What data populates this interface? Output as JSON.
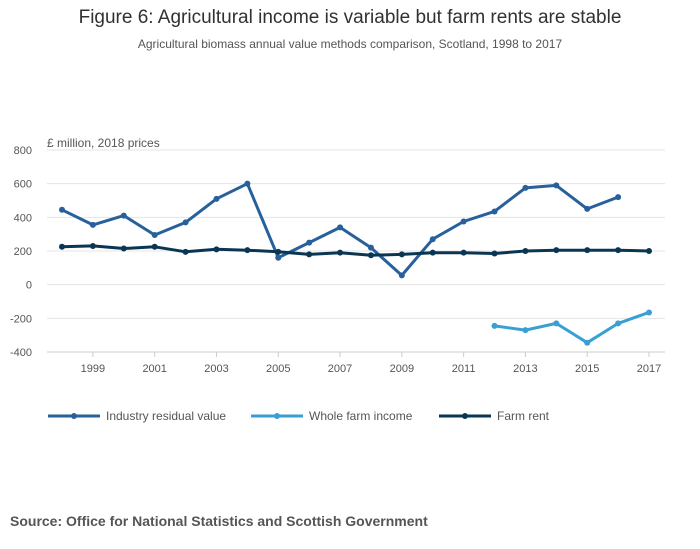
{
  "header": {
    "title": "Figure 6: Agricultural income is variable but farm rents are stable",
    "subtitle": "Agricultural biomass annual value methods comparison, Scotland, 1998 to 2017"
  },
  "footer": {
    "source": "Source: Office for National Statistics and Scottish Government"
  },
  "colors": {
    "industry_residual_value": "#27609b",
    "whole_farm_income": "#3aa0d4",
    "farm_rent": "#0b3653",
    "grid": "#e5e5e5",
    "text": "#555555"
  },
  "chart_data": {
    "type": "line",
    "title": "Figure 6: Agricultural income is variable but farm rents are stable",
    "subtitle": "Agricultural biomass annual value methods comparison, Scotland, 1998 to 2017",
    "xlabel": "",
    "ylabel": "£ million, 2018 prices",
    "x": [
      1998,
      1999,
      2000,
      2001,
      2002,
      2003,
      2004,
      2005,
      2006,
      2007,
      2008,
      2009,
      2010,
      2011,
      2012,
      2013,
      2014,
      2015,
      2016,
      2017
    ],
    "x_ticks": [
      "1999",
      "2001",
      "2003",
      "2005",
      "2007",
      "2009",
      "2011",
      "2013",
      "2015",
      "2017"
    ],
    "y_ticks": [
      "800",
      "600",
      "400",
      "200",
      "0",
      "-200",
      "-400"
    ],
    "ylim": [
      -400,
      800
    ],
    "grid": true,
    "legend_position": "bottom",
    "series": [
      {
        "name": "Industry residual value",
        "values": [
          445,
          355,
          410,
          295,
          370,
          510,
          600,
          160,
          250,
          340,
          220,
          55,
          270,
          375,
          435,
          575,
          590,
          450,
          520,
          null
        ]
      },
      {
        "name": "Whole farm income",
        "values": [
          null,
          null,
          null,
          null,
          null,
          null,
          null,
          null,
          null,
          null,
          null,
          null,
          null,
          null,
          -245,
          -270,
          -230,
          -345,
          -230,
          -165
        ]
      },
      {
        "name": "Farm rent",
        "values": [
          225,
          230,
          215,
          225,
          195,
          210,
          205,
          195,
          180,
          190,
          175,
          180,
          190,
          190,
          185,
          200,
          205,
          205,
          205,
          200
        ]
      }
    ]
  }
}
